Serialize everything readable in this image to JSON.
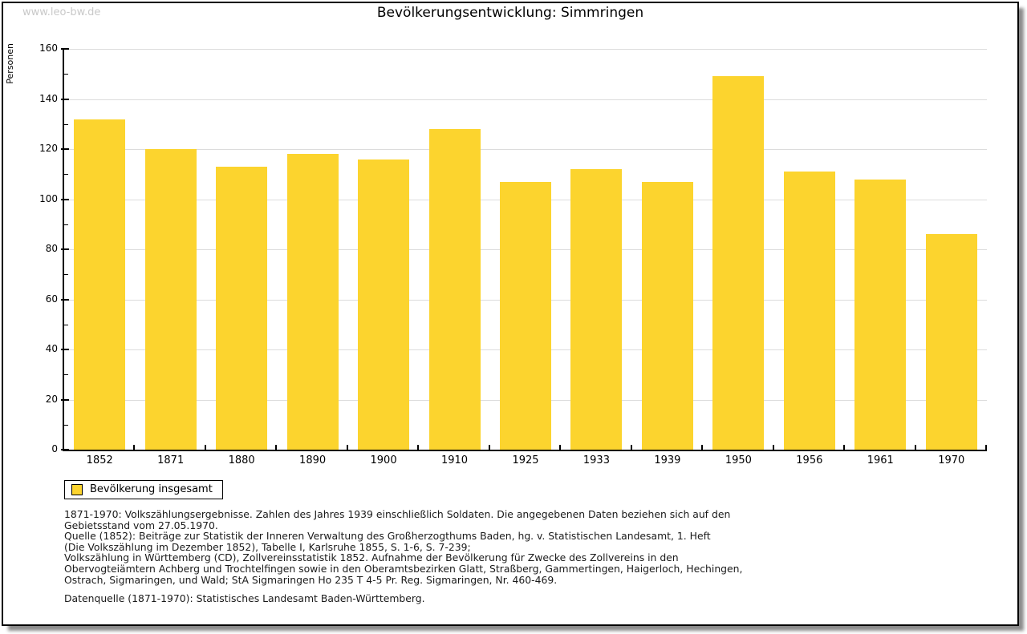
{
  "watermark": "www.leo-bw.de",
  "title": "Bevölkerungsentwicklung: Simmringen",
  "y_axis_label": "Personen",
  "legend": {
    "label": "Bevölkerung insgesamt"
  },
  "colors": {
    "bar": "#fcd42e",
    "gridline": "#dcdcdc",
    "axis": "#000000",
    "watermark": "#c9c9c9",
    "text": "#000000"
  },
  "chart_data": {
    "type": "bar",
    "title": "Bevölkerungsentwicklung: Simmringen",
    "xlabel": "",
    "ylabel": "Personen",
    "categories": [
      "1852",
      "1871",
      "1880",
      "1890",
      "1900",
      "1910",
      "1925",
      "1933",
      "1939",
      "1950",
      "1956",
      "1961",
      "1970"
    ],
    "values": [
      132,
      120,
      113,
      118,
      116,
      128,
      107,
      112,
      107,
      149,
      111,
      108,
      86
    ],
    "series_name": "Bevölkerung insgesamt",
    "ylim": [
      0,
      160
    ],
    "yticks": [
      0,
      20,
      40,
      60,
      80,
      100,
      120,
      140,
      160
    ],
    "ytick_major": 20,
    "ytick_minor": 10,
    "grid": true,
    "legend_position": "bottom-left",
    "bar_color": "#fcd42e"
  },
  "footnotes": {
    "block1": [
      "1871-1970: Volkszählungsergebnisse. Zahlen des Jahres 1939 einschließlich Soldaten. Die angegebenen Daten beziehen sich auf den",
      "Gebietsstand vom 27.05.1970.",
      "Quelle (1852): Beiträge zur Statistik der Inneren Verwaltung des Großherzogthums Baden, hg. v. Statistischen Landesamt, 1. Heft",
      "(Die Volkszählung im Dezember 1852), Tabelle I, Karlsruhe 1855, S. 1-6, S. 7-239;",
      "Volkszählung in Württemberg (CD), Zollvereinsstatistik 1852. Aufnahme der Bevölkerung für Zwecke des Zollvereins in den",
      "Obervogteiämtern Achberg und Trochtelfingen sowie in den Oberamtsbezirken Glatt, Straßberg, Gammertingen, Haigerloch, Hechingen,",
      "Ostrach, Sigmaringen, und Wald; StA Sigmaringen Ho 235 T 4-5 Pr. Reg. Sigmaringen, Nr. 460-469."
    ],
    "block2": [
      "Datenquelle (1871-1970): Statistisches Landesamt Baden-Württemberg."
    ]
  }
}
